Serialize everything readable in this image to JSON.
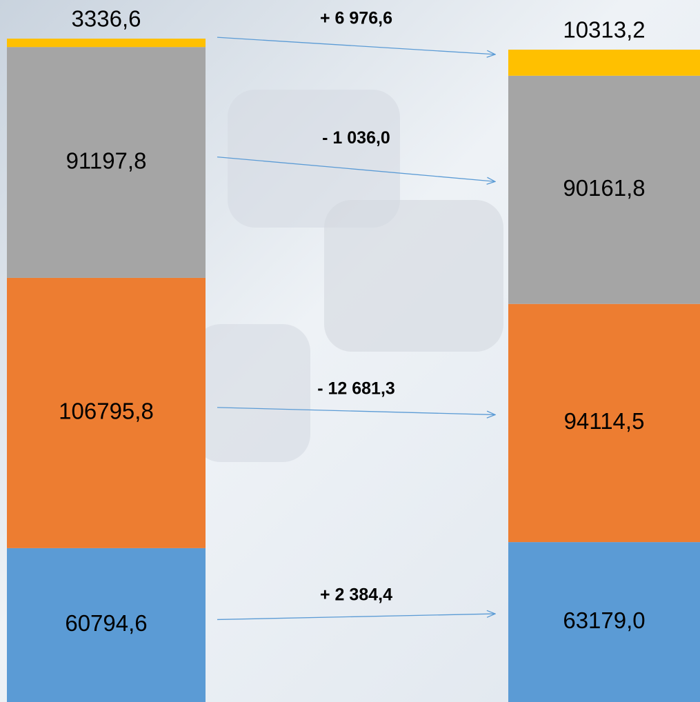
{
  "chart_data": {
    "type": "stacked-bar",
    "categories": [
      null,
      null
    ],
    "series": [
      {
        "color": "#5b9bd5",
        "values": [
          60794.6,
          63179.0
        ],
        "value_labels": [
          "60794,6",
          "63179,0"
        ]
      },
      {
        "color": "#ed7d31",
        "values": [
          106795.8,
          94114.5
        ],
        "value_labels": [
          "106795,8",
          "94114,5"
        ]
      },
      {
        "color": "#a5a5a5",
        "values": [
          91197.8,
          90161.8
        ],
        "value_labels": [
          "91197,8",
          "90161,8"
        ]
      },
      {
        "color": "#ffc000",
        "values": [
          3336.6,
          10313.2
        ],
        "value_labels": [
          "3336,6",
          "10313,2"
        ]
      }
    ],
    "changes": {
      "color": "#5b9bd5",
      "values": [
        2384.4,
        -12681.3,
        -1036.0,
        6976.6
      ],
      "value_labels": [
        "+ 2 384,4",
        "- 12 681,3",
        "- 1 036,0",
        "+ 6 976,6"
      ]
    }
  }
}
